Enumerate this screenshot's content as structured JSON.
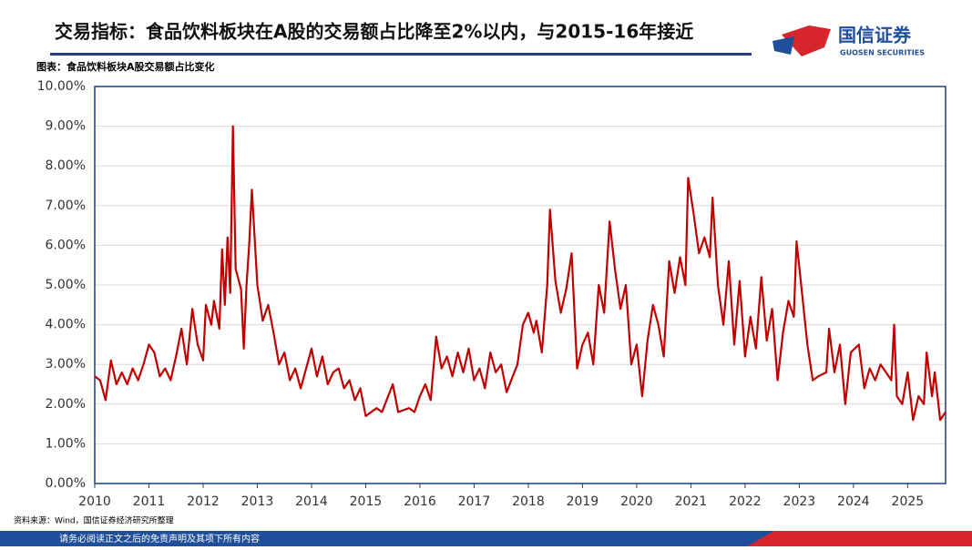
{
  "header": {
    "logo": "国信证券",
    "logo_en": "GUOSEN SECURITIES"
  },
  "footer": "请务必阅读正文之后的免责声明及其项下所有内容",
  "chart_data": {
    "type": "line",
    "title": "交易指标：食品饮料板块在A股的交易额占比降至2%以内，与2015-16年接近",
    "subtitle": "图表：食品饮料板块A股交易额占比变化",
    "source": "资料来源：Wind，国信证券经济研究所整理",
    "color": "#c00000",
    "grid": true,
    "xlim": [
      2010,
      2025.7
    ],
    "xticks": [
      2010,
      2011,
      2012,
      2013,
      2014,
      2015,
      2016,
      2017,
      2018,
      2019,
      2020,
      2021,
      2022,
      2023,
      2024,
      2025
    ],
    "ylim": [
      0,
      10
    ],
    "yticks": [
      {
        "value": 0,
        "label": "0.00%"
      },
      {
        "value": 1,
        "label": "1.00%"
      },
      {
        "value": 2,
        "label": "2.00%"
      },
      {
        "value": 3,
        "label": "3.00%"
      },
      {
        "value": 4,
        "label": "4.00%"
      },
      {
        "value": 5,
        "label": "5.00%"
      },
      {
        "value": 6,
        "label": "6.00%"
      },
      {
        "value": 7,
        "label": "7.00%"
      },
      {
        "value": 8,
        "label": "8.00%"
      },
      {
        "value": 9,
        "label": "9.00%"
      },
      {
        "value": 10,
        "label": "10.00%"
      }
    ],
    "x": [
      2010.0,
      2010.1,
      2010.2,
      2010.3,
      2010.4,
      2010.5,
      2010.6,
      2010.7,
      2010.8,
      2010.9,
      2011.0,
      2011.1,
      2011.2,
      2011.3,
      2011.4,
      2011.5,
      2011.6,
      2011.7,
      2011.8,
      2011.9,
      2012.0,
      2012.05,
      2012.15,
      2012.2,
      2012.3,
      2012.35,
      2012.4,
      2012.45,
      2012.5,
      2012.55,
      2012.6,
      2012.7,
      2012.75,
      2012.8,
      2012.85,
      2012.9,
      2013.0,
      2013.1,
      2013.2,
      2013.3,
      2013.4,
      2013.5,
      2013.6,
      2013.7,
      2013.8,
      2014.0,
      2014.1,
      2014.2,
      2014.3,
      2014.4,
      2014.5,
      2014.6,
      2014.7,
      2014.8,
      2014.9,
      2015.0,
      2015.2,
      2015.3,
      2015.5,
      2015.6,
      2015.8,
      2015.9,
      2016.0,
      2016.1,
      2016.2,
      2016.3,
      2016.4,
      2016.5,
      2016.6,
      2016.7,
      2016.8,
      2016.9,
      2017.0,
      2017.1,
      2017.2,
      2017.3,
      2017.4,
      2017.5,
      2017.6,
      2017.8,
      2017.9,
      2018.0,
      2018.1,
      2018.15,
      2018.25,
      2018.35,
      2018.4,
      2018.5,
      2018.6,
      2018.7,
      2018.8,
      2018.9,
      2019.0,
      2019.1,
      2019.2,
      2019.3,
      2019.4,
      2019.5,
      2019.6,
      2019.7,
      2019.8,
      2019.9,
      2020.0,
      2020.1,
      2020.2,
      2020.3,
      2020.4,
      2020.5,
      2020.6,
      2020.7,
      2020.8,
      2020.9,
      2020.95,
      2021.05,
      2021.15,
      2021.25,
      2021.35,
      2021.4,
      2021.5,
      2021.6,
      2021.7,
      2021.8,
      2021.9,
      2022.0,
      2022.1,
      2022.2,
      2022.3,
      2022.4,
      2022.5,
      2022.6,
      2022.7,
      2022.8,
      2022.9,
      2022.95,
      2023.05,
      2023.15,
      2023.25,
      2023.35,
      2023.5,
      2023.55,
      2023.65,
      2023.75,
      2023.85,
      2023.95,
      2024.1,
      2024.2,
      2024.3,
      2024.4,
      2024.5,
      2024.6,
      2024.7,
      2024.75,
      2024.8,
      2024.9,
      2025.0,
      2025.1,
      2025.2,
      2025.3,
      2025.35,
      2025.45,
      2025.5,
      2025.6,
      2025.7
    ],
    "values": [
      2.7,
      2.6,
      2.1,
      3.1,
      2.5,
      2.8,
      2.5,
      2.9,
      2.6,
      3.0,
      3.5,
      3.3,
      2.7,
      2.9,
      2.6,
      3.2,
      3.9,
      3.0,
      4.4,
      3.5,
      3.1,
      4.5,
      4.0,
      4.6,
      3.9,
      5.9,
      4.5,
      6.2,
      4.8,
      9.0,
      5.4,
      4.9,
      3.4,
      5.0,
      6.0,
      7.4,
      5.0,
      4.1,
      4.5,
      3.8,
      3.0,
      3.3,
      2.6,
      2.9,
      2.4,
      3.4,
      2.7,
      3.2,
      2.5,
      2.8,
      2.9,
      2.4,
      2.6,
      2.1,
      2.4,
      1.7,
      1.9,
      1.8,
      2.5,
      1.8,
      1.9,
      1.8,
      2.2,
      2.5,
      2.1,
      3.7,
      2.9,
      3.2,
      2.7,
      3.3,
      2.8,
      3.4,
      2.6,
      2.9,
      2.4,
      3.3,
      2.8,
      3.0,
      2.3,
      3.0,
      4.0,
      4.3,
      3.8,
      4.1,
      3.3,
      5.0,
      6.9,
      5.1,
      4.3,
      4.9,
      5.8,
      2.9,
      3.5,
      3.8,
      3.0,
      5.0,
      4.3,
      6.6,
      5.4,
      4.4,
      5.0,
      3.0,
      3.5,
      2.2,
      3.6,
      4.5,
      4.0,
      3.2,
      5.6,
      4.8,
      5.7,
      5.0,
      7.7,
      6.8,
      5.8,
      6.2,
      5.7,
      7.2,
      5.0,
      4.0,
      5.6,
      3.5,
      5.1,
      3.2,
      4.2,
      3.4,
      5.2,
      3.6,
      4.4,
      2.6,
      3.8,
      4.6,
      4.2,
      6.1,
      4.8,
      3.5,
      2.6,
      2.7,
      2.8,
      3.9,
      2.8,
      3.5,
      2.0,
      3.3,
      3.5,
      2.4,
      2.9,
      2.6,
      3.0,
      2.8,
      2.6,
      4.0,
      2.2,
      2.0,
      2.8,
      1.6,
      2.2,
      2.0,
      3.3,
      2.2,
      2.8,
      1.6,
      1.8
    ]
  }
}
